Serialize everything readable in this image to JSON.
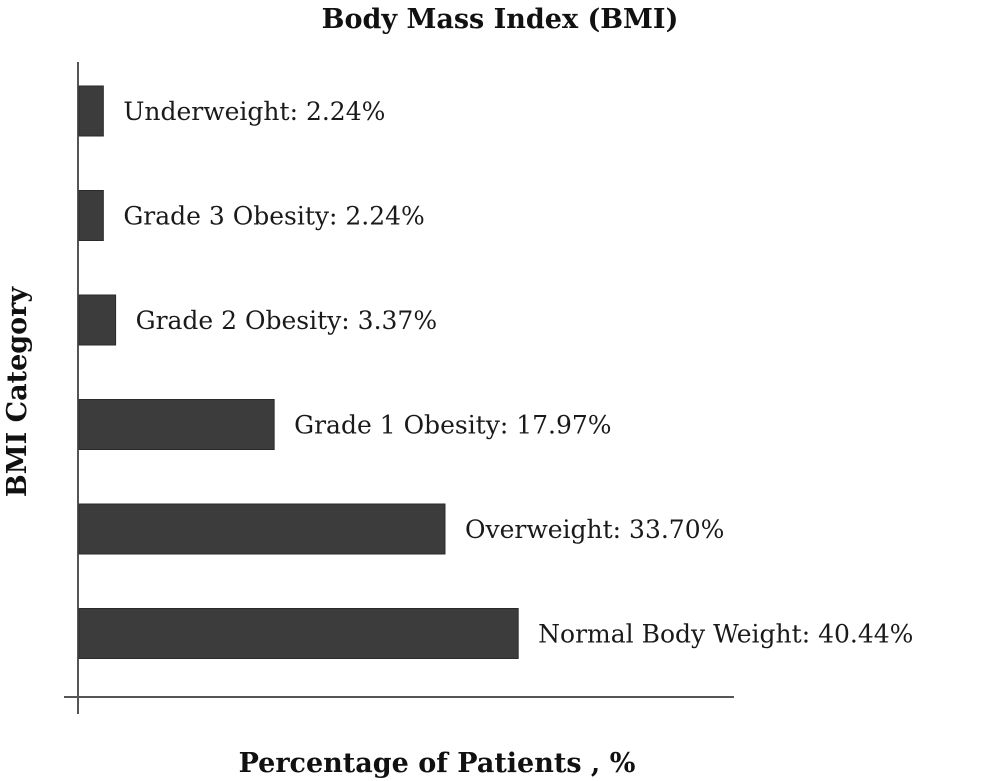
{
  "chart_data": {
    "type": "bar",
    "orientation": "horizontal",
    "title": "Body Mass Index (BMI)",
    "xlabel": "Percentage of Patients , %",
    "ylabel": "BMI Category",
    "categories": [
      "Underweight",
      "Grade 3 Obesity",
      "Grade 2 Obesity",
      "Grade 1 Obesity",
      "Overweight",
      "Normal Body Weight"
    ],
    "values": [
      2.24,
      2.24,
      3.37,
      17.97,
      33.7,
      40.44
    ],
    "labels": [
      "Underweight: 2.24%",
      "Grade 3 Obesity: 2.24%",
      "Grade 2 Obesity: 3.37%",
      "Grade 1 Obesity: 17.97%",
      "Overweight: 33.70%",
      "Normal Body Weight: 40.44%"
    ],
    "xlim": [
      0,
      60
    ],
    "grid": false,
    "legend": "none",
    "bar_color": "#3c3c3c"
  }
}
